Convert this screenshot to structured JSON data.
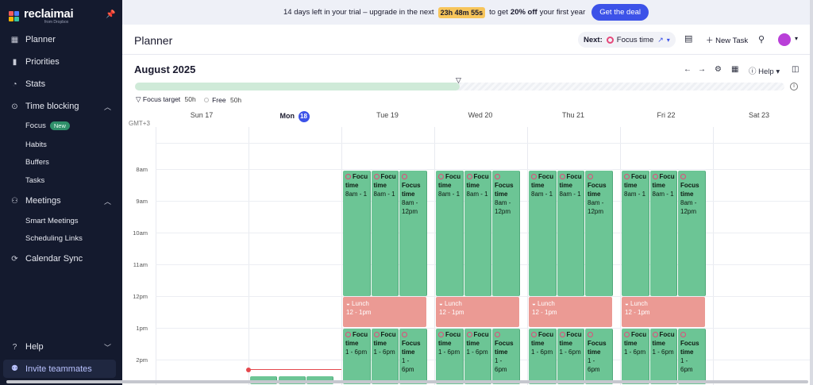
{
  "app": {
    "name": "reclaimai",
    "sub": "from Dropbox"
  },
  "colors": {
    "accent": "#3c52e8",
    "sidebar": "#141a2e",
    "focus": "#6cc595",
    "lunch": "#eb9a94",
    "avatar": "#b93fd8"
  },
  "sidebar": {
    "items": [
      {
        "label": "Planner",
        "icon": "calendar-icon"
      },
      {
        "label": "Priorities",
        "icon": "bar-chart-icon"
      },
      {
        "label": "Stats",
        "icon": "circle-chart-icon"
      },
      {
        "label": "Time blocking",
        "icon": "target-icon"
      },
      {
        "label": "Meetings",
        "icon": "people-icon"
      },
      {
        "label": "Calendar Sync",
        "icon": "sync-icon"
      },
      {
        "label": "Help",
        "icon": "help-icon"
      }
    ],
    "time_blocking_children": [
      "Focus",
      "Habits",
      "Buffers",
      "Tasks"
    ],
    "focus_badge": "New",
    "meetings_children": [
      "Smart Meetings",
      "Scheduling Links"
    ],
    "invite": "Invite teammates"
  },
  "trial": {
    "before": "14 days left in your trial – upgrade in the next",
    "countdown": "23h 48m 55s",
    "middle": "to get",
    "bold": "20% off",
    "after": "your first year",
    "cta": "Get the deal"
  },
  "header": {
    "title": "Planner",
    "next_label": "Next:",
    "next_event": "Focus time",
    "new_task": "New Task"
  },
  "calendar": {
    "month": "August 2025",
    "help": "Help",
    "focus_target_label": "Focus target",
    "focus_target_value": "50h",
    "free_label": "Free",
    "free_value": "50h",
    "focus_progress": 0.5,
    "timezone": "GMT+3",
    "days": [
      {
        "name": "Sun",
        "num": "17"
      },
      {
        "name": "Mon",
        "num": "18",
        "today": true
      },
      {
        "name": "Tue",
        "num": "19"
      },
      {
        "name": "Wed",
        "num": "20"
      },
      {
        "name": "Thu",
        "num": "21"
      },
      {
        "name": "Fri",
        "num": "22"
      },
      {
        "name": "Sat",
        "num": "23"
      }
    ],
    "hours": [
      "8am",
      "9am",
      "10am",
      "11am",
      "12pm",
      "1pm",
      "2pm"
    ],
    "events": {
      "focus_morning_title_cut": "Focu",
      "focus_morning_title_a": "Focus",
      "focus_morning_time_word": "time",
      "focus_morning_range_cut": "8am - 1",
      "focus_morning_range_a": "8am -",
      "focus_morning_range_b": "12pm",
      "lunch_title": "Lunch",
      "lunch_range": "12 - 1pm",
      "focus_afternoon_range": "1 - 6pm",
      "focus_afternoon_range_a": "1 -",
      "focus_afternoon_range_b": "6pm"
    }
  }
}
